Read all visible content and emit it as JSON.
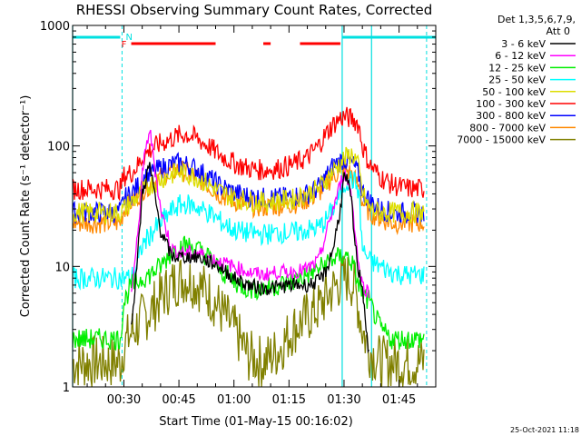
{
  "chart_data": {
    "type": "line",
    "title": "RHESSI Observing Summary Count Rates, Corrected",
    "ylabel": "Corrected Count Rate (s⁻¹ detector⁻¹)",
    "xlabel": "Start Time (01-May-15 00:16:02)",
    "x_units": "minutes since 00:00",
    "xlim": [
      16.03,
      115
    ],
    "ylim": [
      1,
      1000
    ],
    "yscale": "log",
    "y_ticks": [
      {
        "value": 1,
        "label": "1"
      },
      {
        "value": 10,
        "label": "10"
      },
      {
        "value": 100,
        "label": "100"
      },
      {
        "value": 1000,
        "label": "1000"
      }
    ],
    "x_ticks": [
      {
        "value": 30,
        "label": "00:30"
      },
      {
        "value": 45,
        "label": "00:45"
      },
      {
        "value": 60,
        "label": "01:00"
      },
      {
        "value": 75,
        "label": "01:15"
      },
      {
        "value": 90,
        "label": "01:30"
      },
      {
        "value": 105,
        "label": "01:45"
      }
    ],
    "legend_header": [
      "Det 1,3,5,6,7,9,",
      "Att 0"
    ],
    "legend_position": "right",
    "x": [
      16,
      20,
      25,
      29,
      30,
      32,
      34,
      35,
      37,
      40,
      43,
      45,
      47,
      50,
      53,
      56,
      60,
      64,
      68,
      72,
      76,
      80,
      83,
      85,
      87,
      89,
      90,
      91,
      92,
      93,
      94,
      95,
      97,
      100,
      103,
      106,
      109,
      112
    ],
    "series": [
      {
        "name": "3 - 6 keV",
        "color": "#000000",
        "values": [
          null,
          null,
          null,
          null,
          null,
          3,
          15,
          40,
          70,
          20,
          12,
          12,
          12,
          12,
          11,
          10,
          8,
          7,
          6.5,
          6.8,
          7,
          7,
          7.5,
          9,
          14,
          30,
          55,
          50,
          35,
          15,
          9,
          7,
          1.5,
          null,
          null,
          null,
          null,
          null
        ]
      },
      {
        "name": "6 - 12 keV",
        "color": "#ff00ff",
        "values": [
          null,
          null,
          null,
          null,
          null,
          6,
          20,
          60,
          140,
          30,
          14,
          13,
          13,
          13,
          12,
          11,
          10,
          9,
          8.5,
          9,
          9,
          9.5,
          11,
          18,
          30,
          48,
          60,
          52,
          40,
          20,
          10,
          7,
          6,
          null,
          null,
          null,
          null,
          null
        ]
      },
      {
        "name": "12 - 25 keV",
        "color": "#00ee00",
        "values": [
          2.5,
          2.5,
          2.5,
          2.5,
          5,
          7,
          7.5,
          8,
          8.5,
          10,
          13,
          14.5,
          15,
          14,
          12,
          9.5,
          7.5,
          6.5,
          6.5,
          7,
          7.5,
          8.5,
          9.5,
          10.5,
          11.5,
          12,
          12.5,
          12,
          11,
          9,
          7,
          6,
          5,
          3,
          2.5,
          2.5,
          2.5,
          2.5
        ]
      },
      {
        "name": "25 - 50 keV",
        "color": "#00ffff",
        "values": [
          8,
          8,
          8,
          8,
          8,
          8,
          11,
          15,
          18,
          23,
          29,
          32,
          33,
          31,
          28,
          24,
          20,
          19,
          18.5,
          19,
          19,
          20,
          21,
          24,
          30,
          40,
          47,
          52,
          53,
          50,
          42,
          14,
          11,
          10,
          9,
          8.5,
          8.5,
          8.5
        ]
      },
      {
        "name": "50 - 100 keV",
        "color": "#dddd00",
        "values": [
          28,
          28,
          28,
          28,
          30,
          34,
          38,
          42,
          47,
          53,
          58,
          60,
          59,
          55,
          48,
          42,
          37,
          35,
          34,
          35,
          36,
          40,
          44,
          52,
          62,
          72,
          78,
          82,
          85,
          80,
          65,
          40,
          30,
          28,
          28,
          28,
          28,
          28
        ]
      },
      {
        "name": "100 - 300 keV",
        "color": "#ff0000",
        "values": [
          44,
          44,
          44,
          44,
          56,
          60,
          70,
          80,
          92,
          105,
          115,
          122,
          125,
          115,
          100,
          85,
          72,
          65,
          63,
          65,
          70,
          80,
          100,
          125,
          150,
          170,
          175,
          172,
          168,
          162,
          150,
          100,
          70,
          55,
          48,
          45,
          44,
          44
        ]
      },
      {
        "name": "300 - 800 keV",
        "color": "#0000ff",
        "values": [
          28,
          28,
          28,
          28,
          36,
          40,
          47,
          52,
          58,
          65,
          70,
          72,
          70,
          64,
          55,
          47,
          41,
          38,
          37,
          37,
          38,
          40,
          45,
          55,
          68,
          75,
          78,
          75,
          72,
          66,
          58,
          42,
          35,
          30,
          28,
          28,
          28,
          28
        ]
      },
      {
        "name": "800 - 7000 keV",
        "color": "#ff8800",
        "values": [
          23,
          23,
          23,
          23,
          30,
          34,
          39,
          43,
          48,
          55,
          61,
          63,
          61,
          55,
          47,
          40,
          35,
          32,
          31,
          32,
          33,
          36,
          40,
          48,
          56,
          62,
          64,
          62,
          58,
          52,
          46,
          34,
          28,
          25,
          23,
          23,
          23,
          23
        ]
      },
      {
        "name": "7000 - 15000 keV",
        "color": "#808000",
        "values": [
          1.6,
          1.6,
          1.6,
          1.6,
          2.2,
          2.8,
          3.3,
          3.7,
          4.2,
          5.5,
          7,
          7.8,
          8,
          7.2,
          6,
          4.5,
          3,
          1.8,
          1.6,
          2,
          3,
          3.8,
          4.5,
          5.5,
          6.5,
          7.5,
          8,
          8,
          7.5,
          6.5,
          4.5,
          3,
          2,
          1.6,
          1.6,
          1.6,
          1.6,
          1.6
        ]
      }
    ],
    "flag_bars": {
      "night": [
        {
          "x0": 16.03,
          "x1": 29
        },
        {
          "x0": 89.5,
          "x1": 115
        }
      ],
      "flare": [
        {
          "x0": 32,
          "x1": 55
        },
        {
          "x0": 68,
          "x1": 70
        },
        {
          "x0": 78,
          "x1": 89
        }
      ]
    },
    "flag_labels": {
      "N": "N",
      "F": "F"
    },
    "vertical_markers": {
      "solid": [
        16.03,
        89.5,
        97.5
      ],
      "dashed": [
        29.5,
        112.5
      ]
    }
  },
  "footer": {
    "timestamp": "25-Oct-2021 11:18"
  }
}
